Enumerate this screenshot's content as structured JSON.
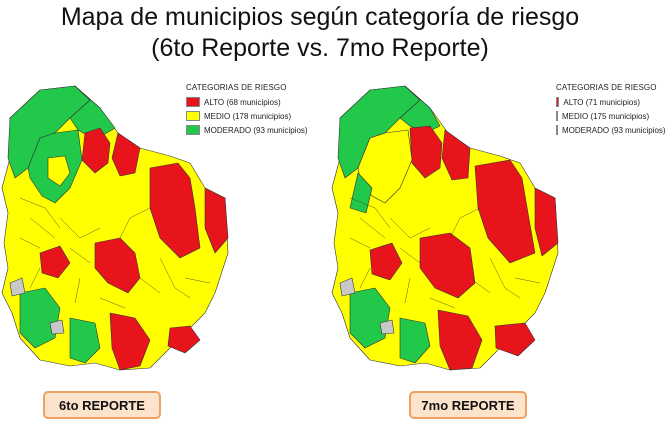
{
  "title_line1": "Mapa de municipios según categoría de riesgo",
  "title_line2": "(6to Reporte vs. 7mo Reporte)",
  "colors": {
    "alto": "#e8141b",
    "medio": "#ffff00",
    "moderado": "#22c84a",
    "none": "#c8c8c8",
    "border": "#333333"
  },
  "maps": [
    {
      "legend_title": "CATEGORIAS DE RIESGO",
      "legend": [
        {
          "label": "ALTO (68 municipios)",
          "level": "alto"
        },
        {
          "label": "MEDIO (178 municipios)",
          "level": "medio"
        },
        {
          "label": "MODERADO (93 municipios)",
          "level": "moderado"
        }
      ],
      "report_label": "6to REPORTE"
    },
    {
      "legend_title": "CATEGORIAS DE RIESGO",
      "legend": [
        {
          "label": "ALTO (71 municipios)",
          "level": "alto"
        },
        {
          "label": "MEDIO (175 municipios)",
          "level": "medio"
        },
        {
          "label": "MODERADO (93 municipios)",
          "level": "moderado"
        }
      ],
      "report_label": "7mo REPORTE"
    }
  ]
}
